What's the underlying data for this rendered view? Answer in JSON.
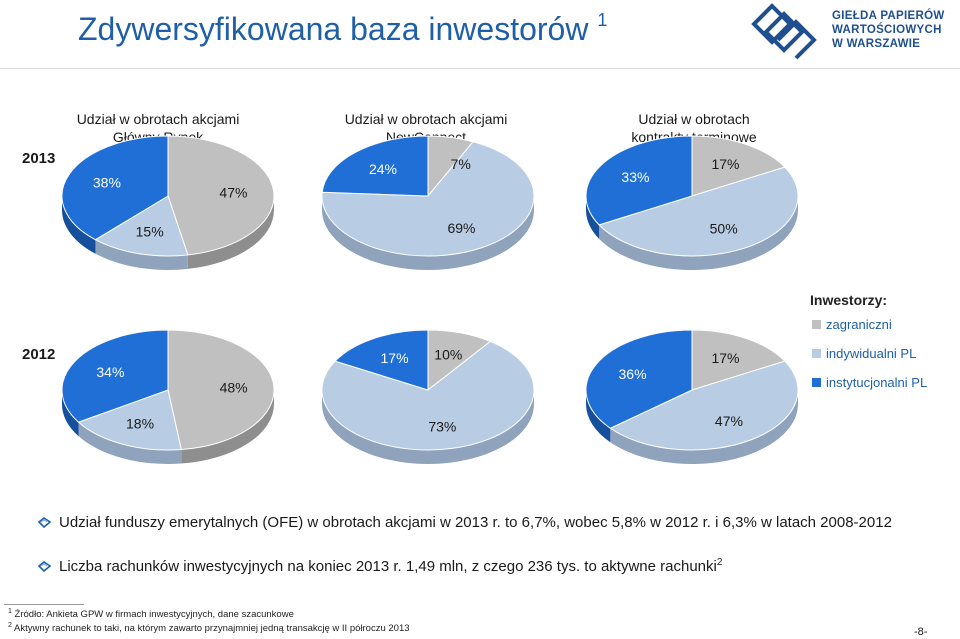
{
  "header": {
    "title": "Zdywersyfikowana baza inwestorów",
    "title_sup": "1",
    "logo_lines": [
      "GIEŁDA PAPIERÓW",
      "WARTOŚCIOWYCH",
      "W WARSZAWIE"
    ]
  },
  "years": [
    "2013",
    "2012"
  ],
  "columns": [
    {
      "line1": "Udział w obrotach akcjami",
      "line2": "Główny Rynek"
    },
    {
      "line1": "Udział w obrotach akcjami",
      "line2": "NewConnect"
    },
    {
      "line1": "Udział w obrotach",
      "line2": "kontrakty terminowe"
    }
  ],
  "legend": {
    "title": "Inwestorzy:",
    "items": [
      {
        "label": "zagraniczni",
        "color": "#c0c0c0"
      },
      {
        "label": "indywidualni PL",
        "color": "#b8cce4"
      },
      {
        "label": "instytucjonalni PL",
        "color": "#1f6fd6"
      }
    ]
  },
  "chart_data": [
    {
      "type": "pie",
      "title": "Udział w obrotach akcjami Główny Rynek",
      "year": "2013",
      "categories": [
        "zagraniczni",
        "indywidualni PL",
        "instytucjonalni PL"
      ],
      "values": [
        47,
        15,
        38
      ],
      "labels": [
        "47%",
        "15%",
        "38%"
      ]
    },
    {
      "type": "pie",
      "title": "Udział w obrotach akcjami NewConnect",
      "year": "2013",
      "categories": [
        "zagraniczni",
        "indywidualni PL",
        "instytucjonalni PL"
      ],
      "values": [
        7,
        69,
        24
      ],
      "labels": [
        "7%",
        "69%",
        "24%"
      ]
    },
    {
      "type": "pie",
      "title": "Udział w obrotach kontrakty terminowe",
      "year": "2013",
      "categories": [
        "zagraniczni",
        "indywidualni PL",
        "instytucjonalni PL"
      ],
      "values": [
        17,
        50,
        33
      ],
      "labels": [
        "17%",
        "50%",
        "33%"
      ]
    },
    {
      "type": "pie",
      "title": "Udział w obrotach akcjami Główny Rynek",
      "year": "2012",
      "categories": [
        "zagraniczni",
        "indywidualni PL",
        "instytucjonalni PL"
      ],
      "values": [
        48,
        18,
        34
      ],
      "labels": [
        "48%",
        "18%",
        "34%"
      ]
    },
    {
      "type": "pie",
      "title": "Udział w obrotach akcjami NewConnect",
      "year": "2012",
      "categories": [
        "zagraniczni",
        "indywidualni PL",
        "instytucjonalni PL"
      ],
      "values": [
        10,
        73,
        17
      ],
      "labels": [
        "10%",
        "73%",
        "17%"
      ]
    },
    {
      "type": "pie",
      "title": "Udział w obrotach kontrakty terminowe",
      "year": "2012",
      "categories": [
        "zagraniczni",
        "indywidualni PL",
        "instytucjonalni PL"
      ],
      "values": [
        17,
        47,
        36
      ],
      "labels": [
        "17%",
        "47%",
        "36%"
      ]
    }
  ],
  "bullets": [
    {
      "text": "Udział funduszy emerytalnych (OFE) w obrotach akcjami w 2013 r. to 6,7%, wobec 5,8% w 2012 r. i 6,3% w latach 2008-2012",
      "sup": ""
    },
    {
      "text": "Liczba rachunków inwestycyjnych na koniec 2013 r.  1,49 mln, z czego 236 tys. to aktywne rachunki",
      "sup": "2"
    }
  ],
  "footnotes": [
    {
      "sup": "1",
      "text": "Źródło: Ankieta GPW w firmach inwestycyjnych, dane szacunkowe"
    },
    {
      "sup": "2",
      "text": "Aktywny rachunek to taki, na którym zawarto przynajmniej jedną transakcję w II półroczu 2013"
    }
  ],
  "page_number": "-8-"
}
